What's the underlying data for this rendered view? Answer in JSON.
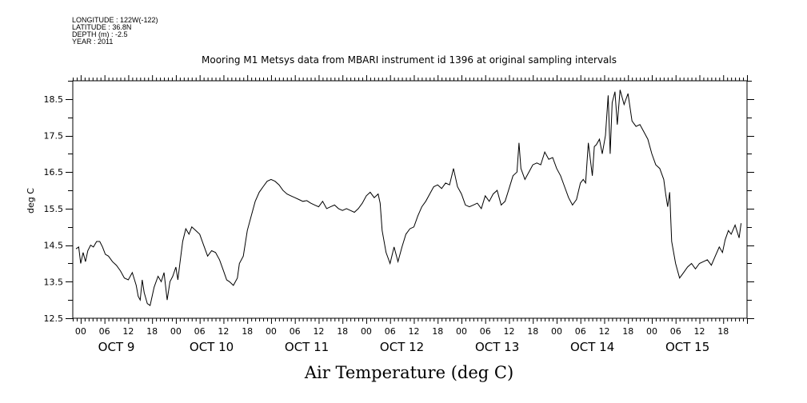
{
  "meta": {
    "longitude": "LONGITUDE : 122W(-122)",
    "latitude": "LATITUDE : 36.8N",
    "depth": "DEPTH (m) : -2.5",
    "year": "YEAR : 2011"
  },
  "chart_data": {
    "type": "line",
    "title": "Mooring M1 Metsys data from MBARI instrument id 1396 at original sampling intervals",
    "xlabel": "Air Temperature (deg C)",
    "ylabel": "deg C",
    "ylim": [
      12.5,
      19.0
    ],
    "yticks": [
      12.5,
      13.5,
      14.5,
      15.5,
      16.5,
      17.5,
      18.5
    ],
    "xlim_hours": [
      -2,
      168
    ],
    "hour_ticks": [
      "00",
      "06",
      "12",
      "18",
      "00",
      "06",
      "12",
      "18",
      "00",
      "06",
      "12",
      "18",
      "00",
      "06",
      "12",
      "18",
      "00",
      "06",
      "12",
      "18",
      "00",
      "06",
      "12",
      "18",
      "00",
      "06",
      "12",
      "18"
    ],
    "day_labels": [
      "OCT  9",
      "OCT 10",
      "OCT 11",
      "OCT 12",
      "OCT 13",
      "OCT 14",
      "OCT 15"
    ],
    "grid": false,
    "series": [
      {
        "x_hours": [
          -1.2,
          -0.5,
          0,
          0.6,
          1.2,
          1.8,
          2.5,
          3.2,
          4,
          4.8,
          5.5,
          6.2,
          7,
          8,
          9,
          10,
          11,
          12,
          13,
          14,
          14.5,
          15,
          15.5,
          16,
          16.8,
          17.5,
          18.5,
          19.5,
          20.3,
          21,
          21.8,
          22.5,
          23.2,
          24,
          24.5,
          25,
          25.7,
          26.5,
          27.3,
          28,
          29,
          30,
          31,
          32,
          33,
          34,
          35,
          36,
          36.8,
          37.5,
          38.5,
          39.5,
          40,
          41,
          42,
          43,
          44,
          45,
          46,
          47,
          48,
          49,
          50,
          51,
          52,
          53,
          54,
          55,
          56,
          57,
          58,
          59,
          60,
          61,
          62,
          63,
          64,
          65,
          66,
          67,
          68,
          69,
          70,
          71,
          72,
          73,
          74,
          75,
          75.5,
          76,
          77,
          78,
          79,
          80,
          81,
          82,
          83,
          84,
          85,
          86,
          87,
          88,
          89,
          90,
          91,
          92,
          93,
          94,
          95,
          96,
          97,
          98,
          99,
          100,
          101,
          102,
          103,
          104,
          105,
          106,
          107,
          108,
          109,
          110,
          110.5,
          111,
          112,
          113,
          114,
          115,
          116,
          117,
          118,
          119,
          120,
          121,
          122,
          123,
          124,
          125,
          126,
          126.7,
          127.3,
          128,
          129,
          129.5,
          130,
          130.8,
          131.5,
          132.3,
          133,
          133.5,
          134,
          134.7,
          135.3,
          136,
          137,
          138,
          139,
          140,
          141,
          142,
          143,
          144,
          145,
          146,
          147,
          147.5,
          148,
          148.5,
          149,
          150,
          151,
          152,
          153,
          154,
          155,
          156,
          157,
          158,
          159,
          160,
          161,
          161.8,
          162.5,
          163.3,
          164,
          165,
          166,
          166.5
        ],
        "y": [
          14.4,
          14.45,
          14.0,
          14.3,
          14.05,
          14.35,
          14.5,
          14.45,
          14.6,
          14.6,
          14.45,
          14.25,
          14.2,
          14.05,
          13.95,
          13.8,
          13.6,
          13.55,
          13.75,
          13.4,
          13.1,
          13.0,
          13.55,
          13.2,
          12.9,
          12.85,
          13.35,
          13.65,
          13.5,
          13.75,
          13.0,
          13.5,
          13.65,
          13.9,
          13.55,
          14.0,
          14.6,
          14.95,
          14.8,
          15.0,
          14.9,
          14.8,
          14.5,
          14.2,
          14.35,
          14.3,
          14.1,
          13.8,
          13.55,
          13.5,
          13.4,
          13.6,
          14.0,
          14.2,
          14.9,
          15.3,
          15.7,
          15.95,
          16.1,
          16.25,
          16.3,
          16.25,
          16.15,
          16.0,
          15.9,
          15.85,
          15.8,
          15.75,
          15.7,
          15.72,
          15.65,
          15.6,
          15.55,
          15.7,
          15.5,
          15.55,
          15.6,
          15.5,
          15.45,
          15.5,
          15.45,
          15.4,
          15.5,
          15.65,
          15.85,
          15.95,
          15.8,
          15.9,
          15.65,
          14.9,
          14.3,
          14.0,
          14.45,
          14.05,
          14.45,
          14.8,
          14.95,
          15.0,
          15.3,
          15.55,
          15.7,
          15.9,
          16.1,
          16.15,
          16.05,
          16.2,
          16.15,
          16.6,
          16.1,
          15.9,
          15.6,
          15.55,
          15.6,
          15.65,
          15.5,
          15.85,
          15.7,
          15.9,
          16.0,
          15.6,
          15.7,
          16.05,
          16.4,
          16.5,
          17.3,
          16.6,
          16.3,
          16.5,
          16.7,
          16.75,
          16.7,
          17.05,
          16.85,
          16.9,
          16.6,
          16.4,
          16.1,
          15.8,
          15.6,
          15.75,
          16.2,
          16.3,
          16.2,
          17.3,
          16.4,
          17.2,
          17.25,
          17.4,
          17.0,
          17.5,
          18.6,
          17.0,
          18.4,
          18.7,
          17.8,
          18.75,
          18.35,
          18.65,
          17.9,
          17.75,
          17.8,
          17.6,
          17.4,
          17.0,
          16.7,
          16.6,
          16.3,
          15.9,
          15.55,
          15.95,
          14.6,
          14.0,
          13.6,
          13.75,
          13.9,
          14.0,
          13.85,
          14.0,
          14.05,
          14.1,
          13.95,
          14.2,
          14.45,
          14.3,
          14.65,
          14.9,
          14.8,
          15.05,
          14.7,
          15.1
        ]
      }
    ]
  }
}
